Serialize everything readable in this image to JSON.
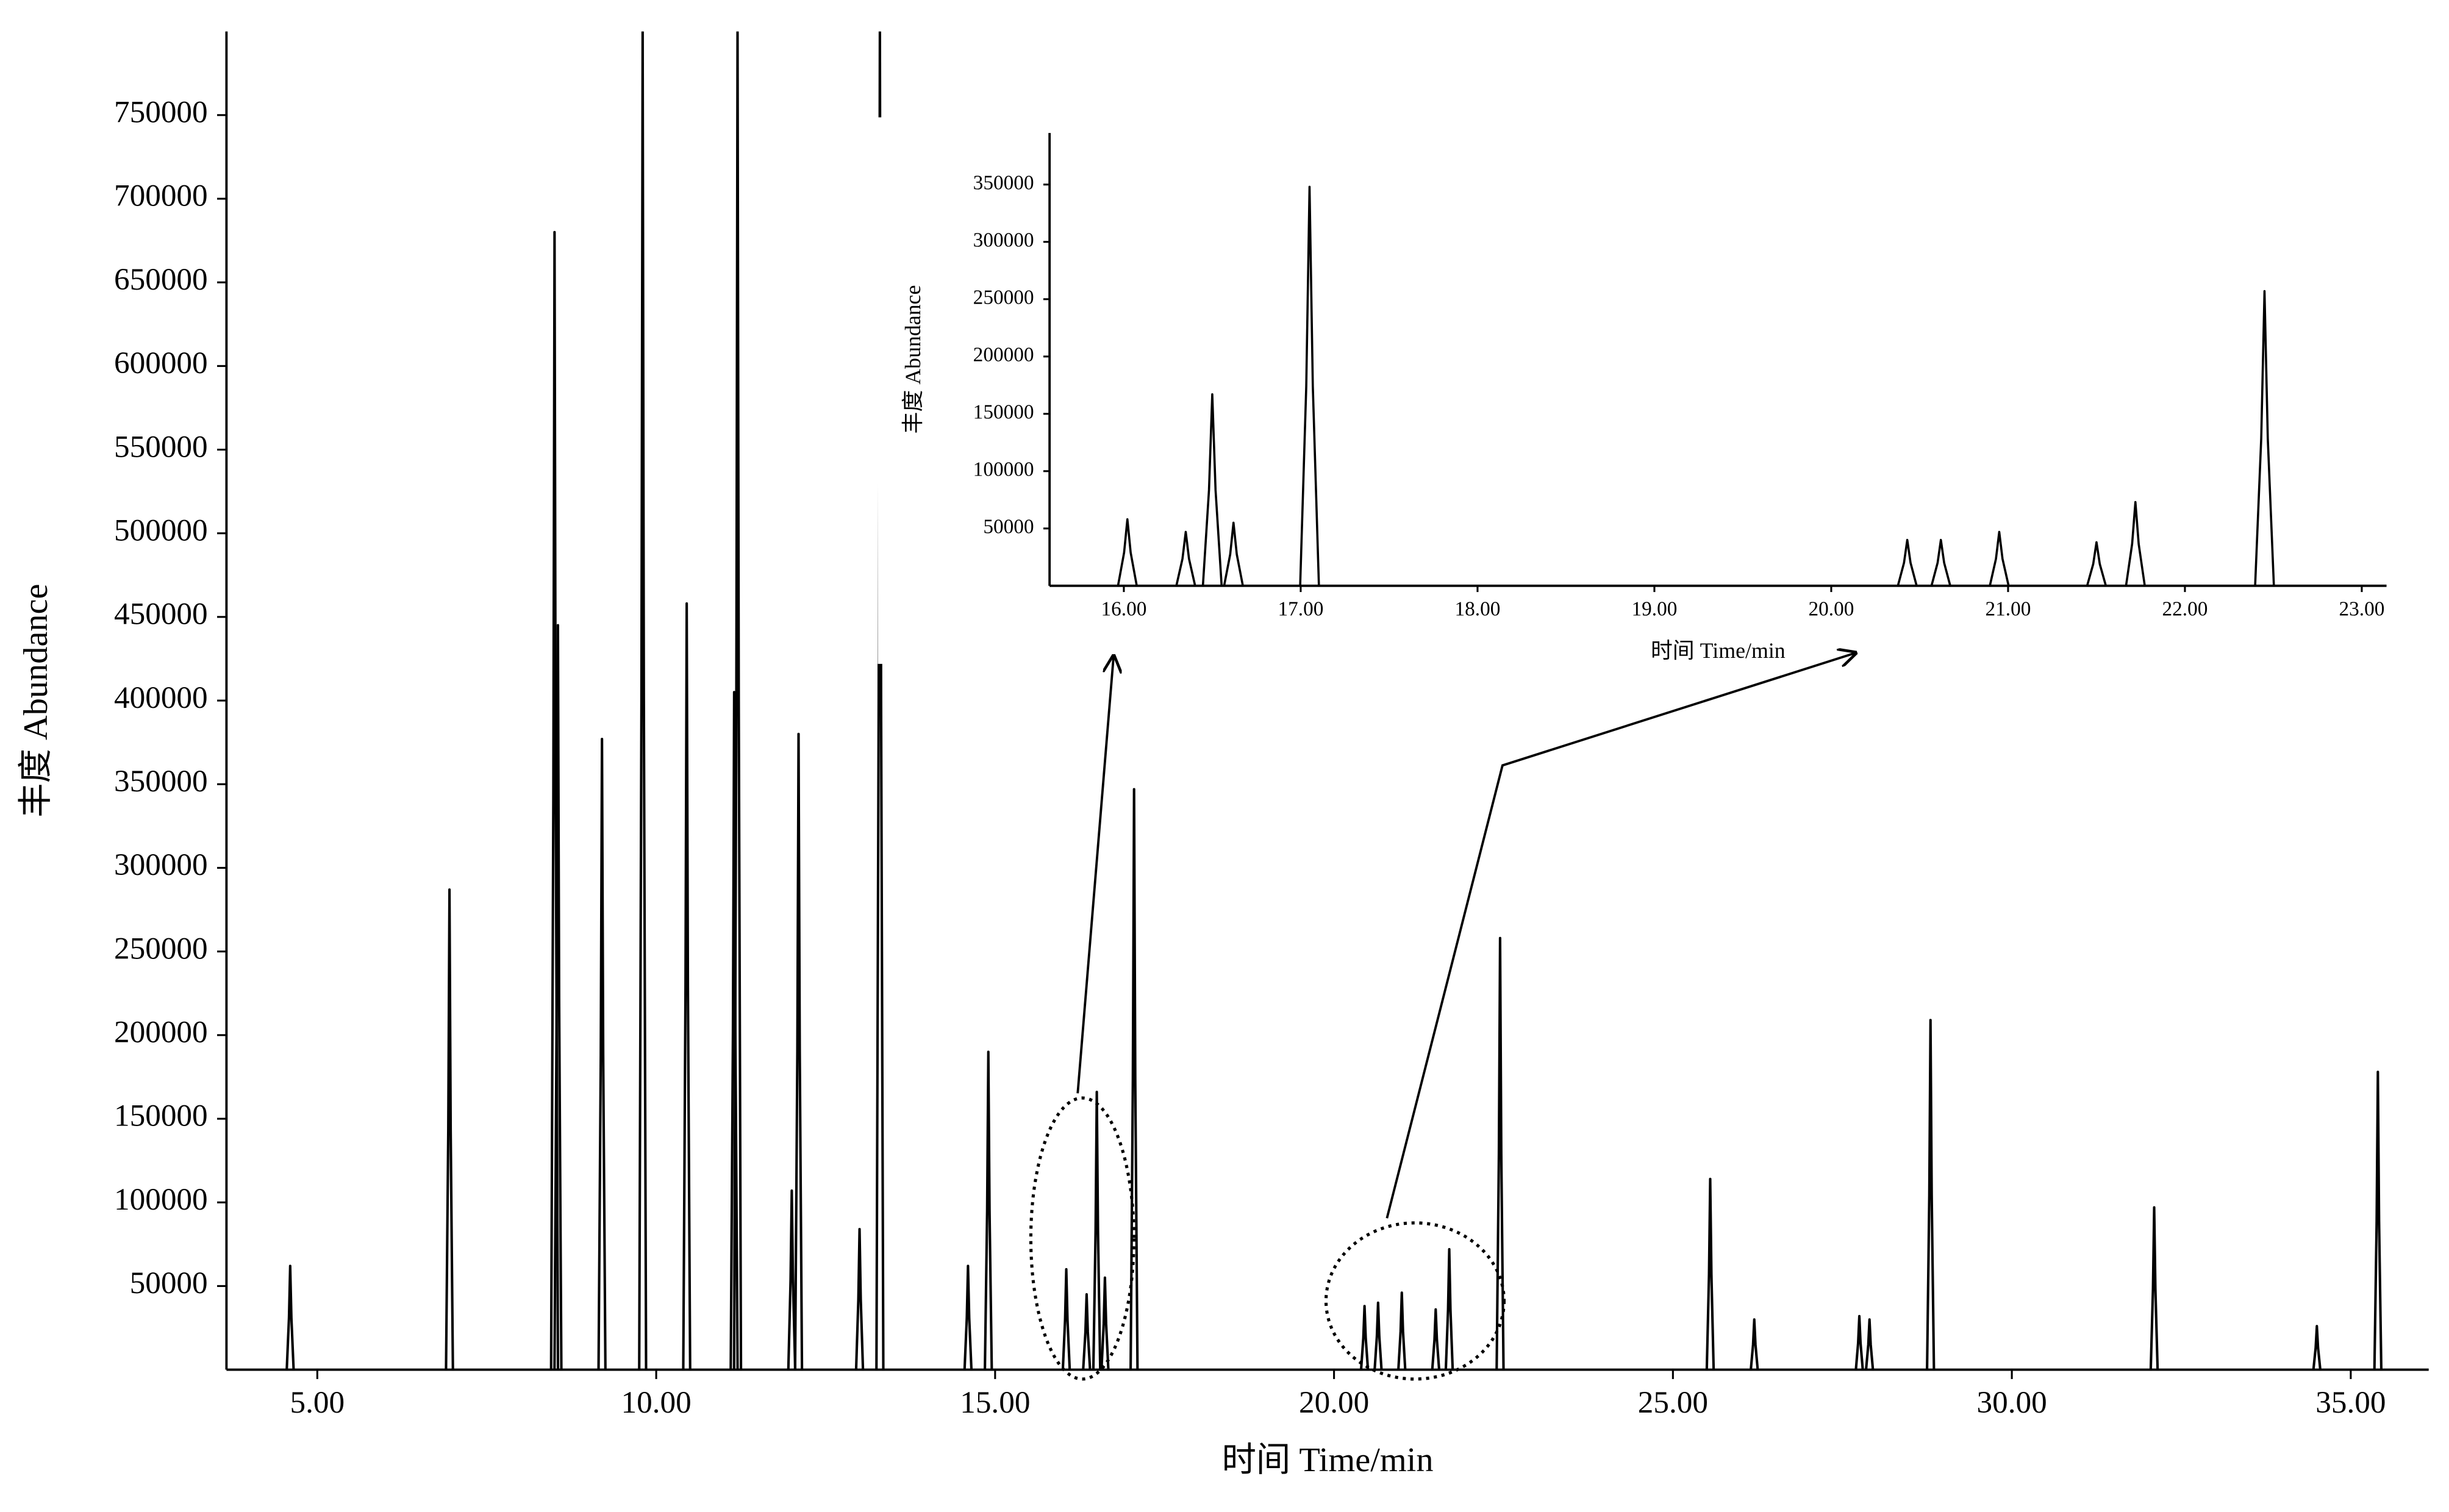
{
  "chart_data": [
    {
      "type": "peaks",
      "xlabel": "时间 Time/min",
      "ylabel": "丰度 Abundance",
      "x": [
        4.6,
        6.95,
        8.5,
        8.55,
        9.2,
        9.8,
        10.45,
        11.15,
        11.2,
        12.0,
        12.1,
        13.0,
        13.3,
        14.6,
        14.9,
        16.05,
        16.35,
        16.5,
        16.62,
        17.05,
        20.45,
        20.65,
        21.0,
        21.5,
        21.7,
        22.45,
        25.55,
        26.2,
        27.75,
        27.9,
        28.8,
        32.1,
        34.5,
        35.4
      ],
      "values": [
        62000,
        287000,
        680000,
        445000,
        377000,
        800000,
        458000,
        405000,
        800000,
        107000,
        380000,
        84000,
        800000,
        62000,
        190000,
        60000,
        45000,
        166000,
        55000,
        347000,
        38000,
        40000,
        46000,
        36000,
        72000,
        258000,
        114000,
        30000,
        32000,
        30000,
        209000,
        97000,
        26000,
        178000
      ],
      "color": "#000000",
      "xlim": [
        3.66,
        36.15
      ],
      "xticks": [
        {
          "value": 5,
          "label": "5.00"
        },
        {
          "value": 10,
          "label": "10.00"
        },
        {
          "value": 15,
          "label": "15.00"
        },
        {
          "value": 20,
          "label": "20.00"
        },
        {
          "value": 25,
          "label": "25.00"
        },
        {
          "value": 30,
          "label": "30.00"
        },
        {
          "value": 35,
          "label": "35.00"
        }
      ],
      "ylim": [
        0,
        800000
      ],
      "yticks": [
        50000,
        100000,
        150000,
        200000,
        250000,
        300000,
        350000,
        400000,
        450000,
        500000,
        550000,
        600000,
        650000,
        700000,
        750000
      ]
    },
    {
      "type": "peaks",
      "xlabel": "时间 Time/min",
      "ylabel": "丰度 Abundance",
      "x": [
        16.02,
        16.35,
        16.5,
        16.62,
        17.05,
        20.43,
        20.62,
        20.95,
        21.5,
        21.72,
        22.45
      ],
      "values": [
        58000,
        47000,
        167000,
        55000,
        348000,
        40000,
        40000,
        47000,
        38000,
        73000,
        257000
      ],
      "color": "#000000",
      "xlim": [
        15.58,
        23.14
      ],
      "xticks": [
        {
          "value": 16,
          "label": "16.00"
        },
        {
          "value": 17,
          "label": "17.00"
        },
        {
          "value": 18,
          "label": "18.00"
        },
        {
          "value": 19,
          "label": "19.00"
        },
        {
          "value": 20,
          "label": "20.00"
        },
        {
          "value": 21,
          "label": "21.00"
        },
        {
          "value": 22,
          "label": "22.00"
        },
        {
          "value": 23,
          "label": "23.00"
        }
      ],
      "ylim": [
        0,
        395000
      ],
      "yticks": [
        50000,
        100000,
        150000,
        200000,
        250000,
        300000,
        350000
      ]
    }
  ]
}
